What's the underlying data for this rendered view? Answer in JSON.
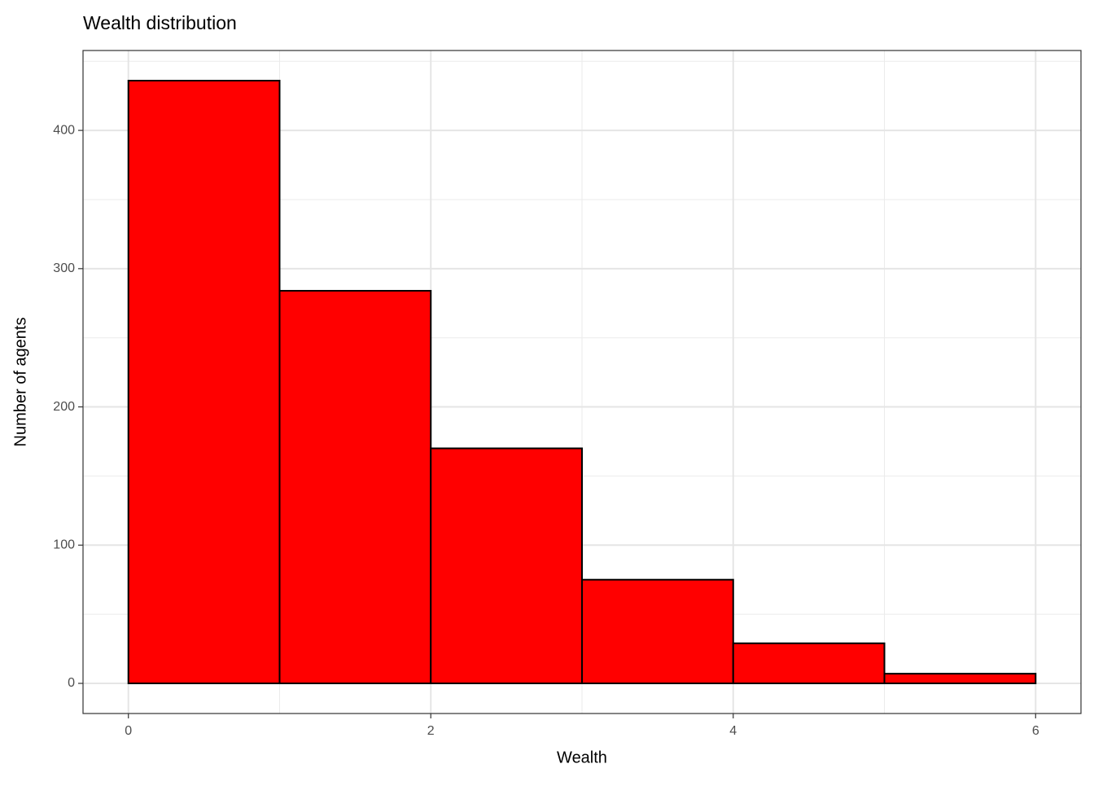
{
  "chart_data": {
    "type": "histogram",
    "title": "Wealth distribution",
    "x_label": "Wealth",
    "y_label": "Number of agents",
    "bins": [
      0,
      1,
      2,
      3,
      4,
      5,
      6
    ],
    "values": [
      436,
      284,
      170,
      75,
      29,
      7
    ],
    "color": "#ff0000",
    "edge_color": "#000000",
    "xlim": [
      -0.3,
      6.3
    ],
    "ylim": [
      -21.8,
      457.8
    ],
    "xticks": [
      0,
      2,
      4,
      6
    ],
    "yticks": [
      0,
      100,
      200,
      300,
      400
    ],
    "x_minor_ticks": [
      1,
      3,
      5
    ],
    "y_minor_ticks": [
      50,
      150,
      250,
      350,
      450
    ],
    "grid": true
  }
}
